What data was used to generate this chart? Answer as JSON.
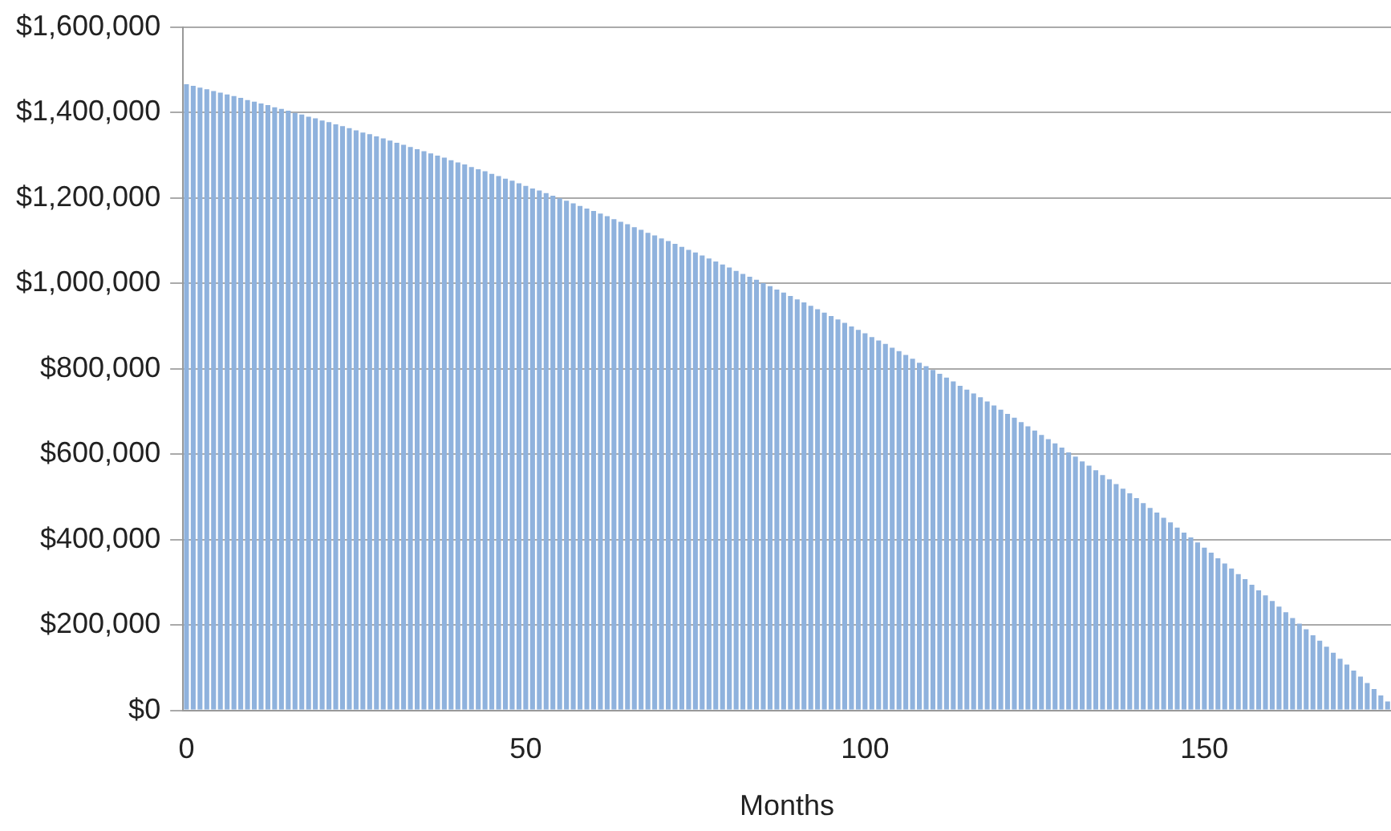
{
  "chart_data": {
    "type": "bar",
    "xlabel": "Months",
    "x": [
      0,
      1,
      2,
      3,
      4,
      5,
      6,
      7,
      8,
      9,
      10,
      11,
      12,
      13,
      14,
      15,
      16,
      17,
      18,
      19,
      20,
      21,
      22,
      23,
      24,
      25,
      26,
      27,
      28,
      29,
      30,
      31,
      32,
      33,
      34,
      35,
      36,
      37,
      38,
      39,
      40,
      41,
      42,
      43,
      44,
      45,
      46,
      47,
      48,
      49,
      50,
      51,
      52,
      53,
      54,
      55,
      56,
      57,
      58,
      59,
      60,
      61,
      62,
      63,
      64,
      65,
      66,
      67,
      68,
      69,
      70,
      71,
      72,
      73,
      74,
      75,
      76,
      77,
      78,
      79,
      80,
      81,
      82,
      83,
      84,
      85,
      86,
      87,
      88,
      89,
      90,
      91,
      92,
      93,
      94,
      95,
      96,
      97,
      98,
      99,
      100,
      101,
      102,
      103,
      104,
      105,
      106,
      107,
      108,
      109,
      110,
      111,
      112,
      113,
      114,
      115,
      116,
      117,
      118,
      119,
      120,
      121,
      122,
      123,
      124,
      125,
      126,
      127,
      128,
      129,
      130,
      131,
      132,
      133,
      134,
      135,
      136,
      137,
      138,
      139,
      140,
      141,
      142,
      143,
      144,
      145,
      146,
      147,
      148,
      149,
      150,
      151,
      152,
      153,
      154,
      155,
      156,
      157,
      158,
      159,
      160,
      161,
      162,
      163,
      164,
      165,
      166,
      167,
      168,
      169,
      170,
      171,
      172,
      173,
      174,
      175,
      176,
      177
    ],
    "values": [
      1466000,
      1462000,
      1458000,
      1454000,
      1450000,
      1446000,
      1442000,
      1438000,
      1434000,
      1429000,
      1425000,
      1421000,
      1417000,
      1412000,
      1408000,
      1404000,
      1399000,
      1395000,
      1390000,
      1386000,
      1381000,
      1377000,
      1372000,
      1368000,
      1363000,
      1358000,
      1353000,
      1349000,
      1344000,
      1339000,
      1334000,
      1329000,
      1324000,
      1319000,
      1314000,
      1309000,
      1304000,
      1299000,
      1294000,
      1288000,
      1283000,
      1278000,
      1272000,
      1267000,
      1262000,
      1256000,
      1251000,
      1245000,
      1240000,
      1234000,
      1228000,
      1222000,
      1217000,
      1211000,
      1205000,
      1199000,
      1193000,
      1187000,
      1181000,
      1175000,
      1169000,
      1163000,
      1157000,
      1150000,
      1144000,
      1138000,
      1131000,
      1125000,
      1118000,
      1112000,
      1105000,
      1099000,
      1092000,
      1085000,
      1078000,
      1072000,
      1065000,
      1058000,
      1051000,
      1044000,
      1037000,
      1029000,
      1022000,
      1015000,
      1008000,
      1000000,
      993000,
      985000,
      978000,
      970000,
      962000,
      955000,
      947000,
      939000,
      931000,
      923000,
      915000,
      907000,
      899000,
      891000,
      883000,
      874000,
      866000,
      858000,
      849000,
      841000,
      832000,
      823000,
      814000,
      806000,
      797000,
      788000,
      779000,
      770000,
      760000,
      751000,
      742000,
      733000,
      723000,
      714000,
      704000,
      694000,
      685000,
      675000,
      665000,
      655000,
      645000,
      635000,
      625000,
      615000,
      604000,
      594000,
      583000,
      573000,
      562000,
      551000,
      541000,
      530000,
      519000,
      508000,
      497000,
      485000,
      474000,
      463000,
      451000,
      440000,
      428000,
      416000,
      405000,
      393000,
      381000,
      369000,
      356000,
      344000,
      332000,
      319000,
      307000,
      294000,
      281000,
      269000,
      256000,
      243000,
      230000,
      216000,
      203000,
      190000,
      176000,
      163000,
      149000,
      135000,
      121000,
      107000,
      93000,
      79000,
      64000,
      50000,
      35000,
      21000
    ],
    "color": "#8fb2dd",
    "xlim": [
      -0.5,
      177.5
    ],
    "xticks": [
      0,
      50,
      100,
      150
    ],
    "ylim": [
      0,
      1600000
    ],
    "yticks": [
      {
        "value": 0,
        "label": "$0"
      },
      {
        "value": 200000,
        "label": "$200,000"
      },
      {
        "value": 400000,
        "label": "$400,000"
      },
      {
        "value": 600000,
        "label": "$600,000"
      },
      {
        "value": 800000,
        "label": "$800,000"
      },
      {
        "value": 1000000,
        "label": "$1,000,000"
      },
      {
        "value": 1200000,
        "label": "$1,200,000"
      },
      {
        "value": 1400000,
        "label": "$1,400,000"
      },
      {
        "value": 1600000,
        "label": "$1,600,000"
      }
    ],
    "grid": "y"
  }
}
